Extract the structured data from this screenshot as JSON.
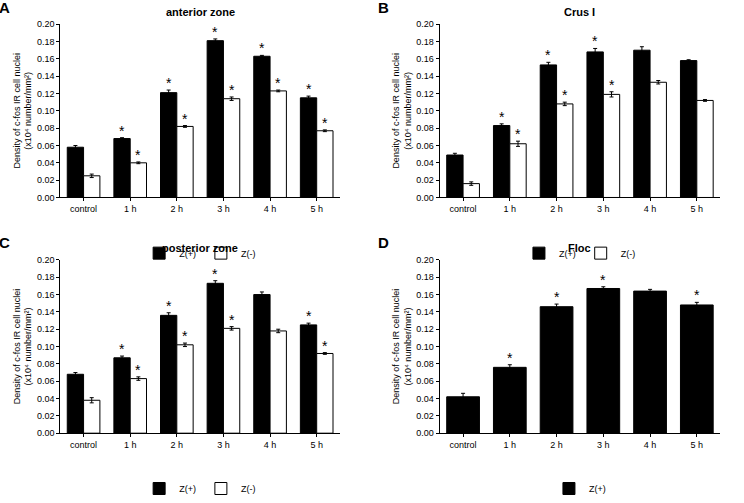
{
  "chart_data": [
    {
      "type": "bar",
      "label": "A",
      "title": "anterior zone",
      "y_label": [
        "Density of c-fos IR cell nuclei",
        "(x10⁴ number/mm²)"
      ],
      "categories": [
        "control",
        "1 h",
        "2 h",
        "3 h",
        "4 h",
        "5 h"
      ],
      "series": [
        {
          "name": "Z(+)",
          "color": "#000000",
          "values": [
            0.058,
            0.068,
            0.121,
            0.181,
            0.163,
            0.115
          ],
          "errors": [
            0.002,
            0.001,
            0.003,
            0.002,
            0.001,
            0.002
          ],
          "annotations": [
            null,
            "*",
            "*",
            "*",
            "*",
            "*"
          ]
        },
        {
          "name": "Z(-)",
          "color": "#ffffff",
          "values": [
            0.025,
            0.04,
            0.082,
            0.114,
            0.123,
            0.077
          ],
          "errors": [
            0.002,
            0.001,
            0.001,
            0.002,
            0.001,
            0.001
          ],
          "annotations": [
            null,
            "*",
            "*",
            "*",
            "*",
            "*"
          ]
        }
      ],
      "ylim": [
        0,
        0.2
      ],
      "yticks": [
        {
          "value": 0,
          "label": "0.00"
        },
        {
          "value": 0.02,
          "label": "0.02"
        },
        {
          "value": 0.04,
          "label": "0.04"
        },
        {
          "value": 0.06,
          "label": "0.06"
        },
        {
          "value": 0.08,
          "label": "0.08"
        },
        {
          "value": 0.1,
          "label": "0.10"
        },
        {
          "value": 0.12,
          "label": "0.12"
        },
        {
          "value": 0.14,
          "label": "0.14"
        },
        {
          "value": 0.16,
          "label": "0.16"
        },
        {
          "value": 0.18,
          "label": "0.18"
        },
        {
          "value": 0.2,
          "label": "0.20"
        }
      ],
      "grid": false,
      "legend": "bottom"
    },
    {
      "type": "bar",
      "label": "B",
      "title": "Crus I",
      "y_label": [
        "Density of c-fos IR cell nuclei",
        "(x10⁴ number/mm²)"
      ],
      "categories": [
        "control",
        "1 h",
        "2 h",
        "3 h",
        "4 h",
        "5 h"
      ],
      "series": [
        {
          "name": "Z(+)",
          "color": "#000000",
          "values": [
            0.049,
            0.083,
            0.153,
            0.168,
            0.17,
            0.158
          ],
          "errors": [
            0.002,
            0.002,
            0.003,
            0.004,
            0.004,
            0.001
          ],
          "annotations": [
            null,
            "*",
            "*",
            "*",
            null,
            null
          ]
        },
        {
          "name": "Z(-)",
          "color": "#ffffff",
          "values": [
            0.016,
            0.062,
            0.108,
            0.119,
            0.133,
            0.112
          ],
          "errors": [
            0.002,
            0.003,
            0.002,
            0.003,
            0.002,
            0.001
          ],
          "annotations": [
            null,
            "*",
            "*",
            "*",
            null,
            null
          ]
        }
      ],
      "ylim": [
        0,
        0.2
      ],
      "yticks": [
        {
          "value": 0,
          "label": "0.00"
        },
        {
          "value": 0.02,
          "label": "0.02"
        },
        {
          "value": 0.04,
          "label": "0.04"
        },
        {
          "value": 0.06,
          "label": "0.06"
        },
        {
          "value": 0.08,
          "label": "0.08"
        },
        {
          "value": 0.1,
          "label": "0.10"
        },
        {
          "value": 0.12,
          "label": "0.12"
        },
        {
          "value": 0.14,
          "label": "0.14"
        },
        {
          "value": 0.16,
          "label": "0.16"
        },
        {
          "value": 0.18,
          "label": "0.18"
        },
        {
          "value": 0.2,
          "label": "0.20"
        }
      ],
      "grid": false,
      "legend": "bottom"
    },
    {
      "type": "bar",
      "label": "C",
      "title": "posterior zone",
      "y_label": [
        "Density of c-fos IR cell nuclei",
        "(x10⁴ number/mm²)"
      ],
      "categories": [
        "control",
        "1 h",
        "2 h",
        "3 h",
        "4 h",
        "5 h"
      ],
      "series": [
        {
          "name": "Z(+)",
          "color": "#000000",
          "values": [
            0.068,
            0.087,
            0.136,
            0.173,
            0.16,
            0.125
          ],
          "errors": [
            0.002,
            0.002,
            0.003,
            0.003,
            0.003,
            0.002
          ],
          "annotations": [
            null,
            "*",
            "*",
            "*",
            null,
            "*"
          ]
        },
        {
          "name": "Z(-)",
          "color": "#ffffff",
          "values": [
            0.038,
            0.063,
            0.102,
            0.121,
            0.118,
            0.092
          ],
          "errors": [
            0.003,
            0.002,
            0.002,
            0.002,
            0.002,
            0.001
          ],
          "annotations": [
            null,
            "*",
            "*",
            "*",
            null,
            "*"
          ]
        }
      ],
      "ylim": [
        0,
        0.2
      ],
      "yticks": [
        {
          "value": 0,
          "label": "0.00"
        },
        {
          "value": 0.02,
          "label": "0.02"
        },
        {
          "value": 0.04,
          "label": "0.04"
        },
        {
          "value": 0.06,
          "label": "0.06"
        },
        {
          "value": 0.08,
          "label": "0.08"
        },
        {
          "value": 0.1,
          "label": "0.10"
        },
        {
          "value": 0.12,
          "label": "0.12"
        },
        {
          "value": 0.14,
          "label": "0.14"
        },
        {
          "value": 0.16,
          "label": "0.16"
        },
        {
          "value": 0.18,
          "label": "0.18"
        },
        {
          "value": 0.2,
          "label": "0.20"
        }
      ],
      "grid": false,
      "legend": "bottom"
    },
    {
      "type": "bar",
      "label": "D",
      "title": "Floc",
      "y_label": [
        "Density of c-fos IR cell nuclei",
        "(x10⁴ number/mm²)"
      ],
      "categories": [
        "control",
        "1 h",
        "2 h",
        "3 h",
        "4 h",
        "5 h"
      ],
      "series": [
        {
          "name": "Z(+)",
          "color": "#000000",
          "values": [
            0.042,
            0.076,
            0.146,
            0.167,
            0.164,
            0.148
          ],
          "errors": [
            0.004,
            0.003,
            0.003,
            0.002,
            0.002,
            0.003
          ],
          "annotations": [
            null,
            "*",
            "*",
            "*",
            null,
            "*"
          ]
        }
      ],
      "ylim": [
        0,
        0.2
      ],
      "yticks": [
        {
          "value": 0,
          "label": "0.00"
        },
        {
          "value": 0.02,
          "label": "0.02"
        },
        {
          "value": 0.04,
          "label": "0.04"
        },
        {
          "value": 0.06,
          "label": "0.06"
        },
        {
          "value": 0.08,
          "label": "0.08"
        },
        {
          "value": 0.1,
          "label": "0.10"
        },
        {
          "value": 0.12,
          "label": "0.12"
        },
        {
          "value": 0.14,
          "label": "0.14"
        },
        {
          "value": 0.16,
          "label": "0.16"
        },
        {
          "value": 0.18,
          "label": "0.18"
        },
        {
          "value": 0.2,
          "label": "0.20"
        }
      ],
      "grid": false,
      "legend": "bottom"
    }
  ]
}
